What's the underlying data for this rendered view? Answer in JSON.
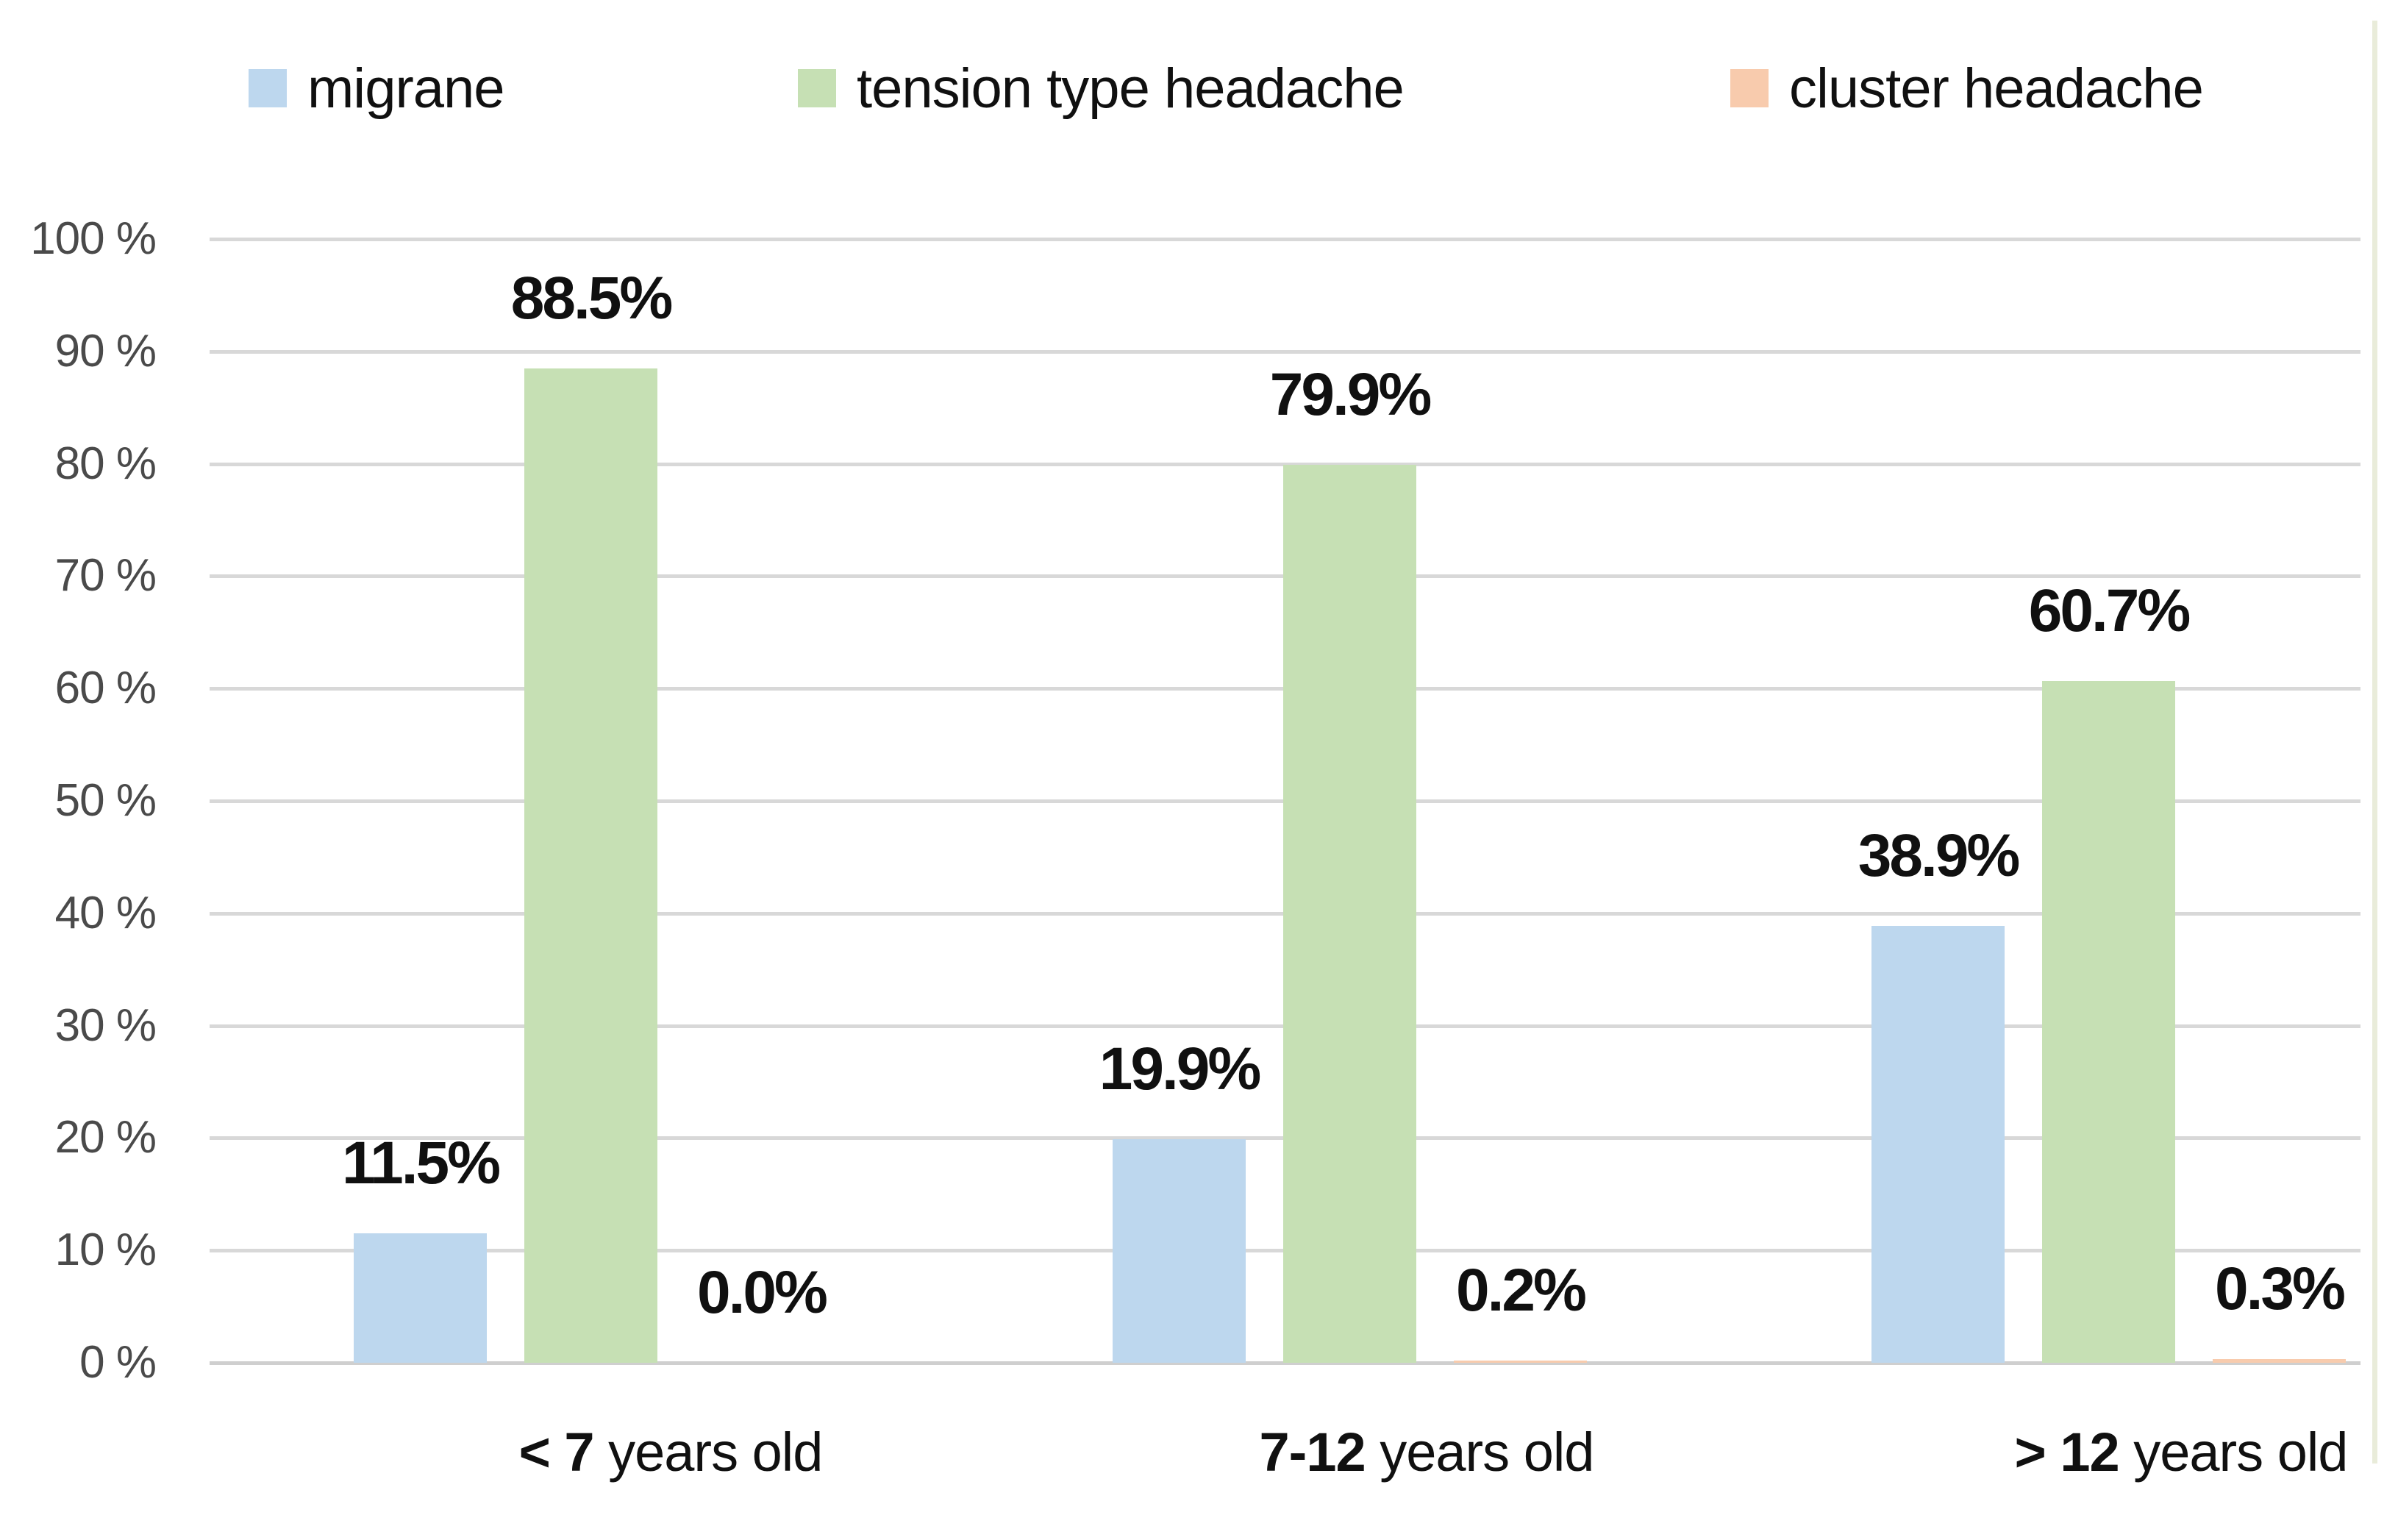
{
  "chart_data": {
    "type": "bar",
    "title": "",
    "categories": [
      {
        "bold": "< 7",
        "rest": " years old"
      },
      {
        "bold": "7-12",
        "rest": " years old"
      },
      {
        "bold": "> 12",
        "rest": " years old"
      }
    ],
    "series": [
      {
        "name": "migrane",
        "color": "#BDD7EE",
        "values": [
          11.5,
          19.9,
          38.9
        ],
        "labels": [
          "11.5%",
          "19.9%",
          "38.9%"
        ]
      },
      {
        "name": "tension type headache",
        "color": "#C6E0B4",
        "values": [
          88.5,
          79.9,
          60.7
        ],
        "labels": [
          "88.5%",
          "79.9%",
          "60.7%"
        ]
      },
      {
        "name": "cluster headache",
        "color": "#F8CBAD",
        "values": [
          0.0,
          0.2,
          0.3
        ],
        "labels": [
          "0.0%",
          "0.2%",
          "0.3%"
        ]
      }
    ],
    "y_axis": {
      "min": 0,
      "max": 100,
      "step": 10,
      "tick_labels": [
        "0 %",
        "10 %",
        "20 %",
        "30 %",
        "40 %",
        "50 %",
        "60 %",
        "70 %",
        "80 %",
        "90 %",
        "100 %"
      ]
    },
    "legend_position": "top",
    "grid": true,
    "colors": {
      "gridline": "#D8D8D8",
      "axis_line": "#CFCFCF",
      "tick_text": "#4A4A4A",
      "label_text": "#101010",
      "figure_edge": "#E9ECDA",
      "background": "#FFFFFF"
    }
  }
}
